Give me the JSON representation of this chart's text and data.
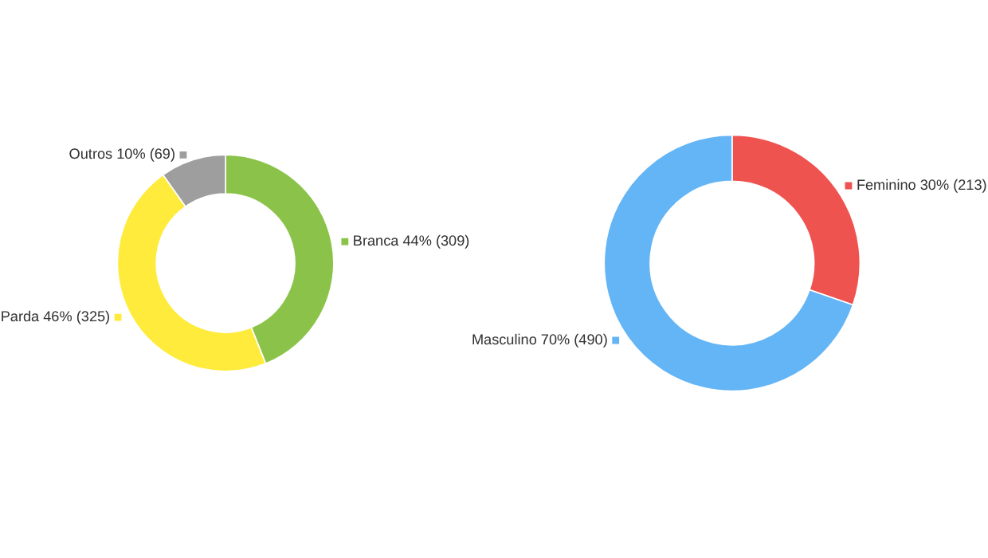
{
  "chart_data": [
    {
      "type": "donut",
      "categories": [
        "Branca",
        "Parda",
        "Outros"
      ],
      "values": [
        309,
        325,
        69
      ],
      "value_labels": [
        "44% (309)",
        "46% (325)",
        "10% (69)"
      ],
      "colors": [
        "#8bc34a",
        "#ffeb3b",
        "#9e9e9e"
      ],
      "legend": "left"
    },
    {
      "type": "donut",
      "categories": [
        "Feminino",
        "Masculino"
      ],
      "values": [
        213,
        490
      ],
      "value_labels": [
        "30% (213)",
        "70% (490)"
      ],
      "colors": [
        "#ef5350",
        "#64b5f6"
      ],
      "legend": "top right"
    }
  ]
}
